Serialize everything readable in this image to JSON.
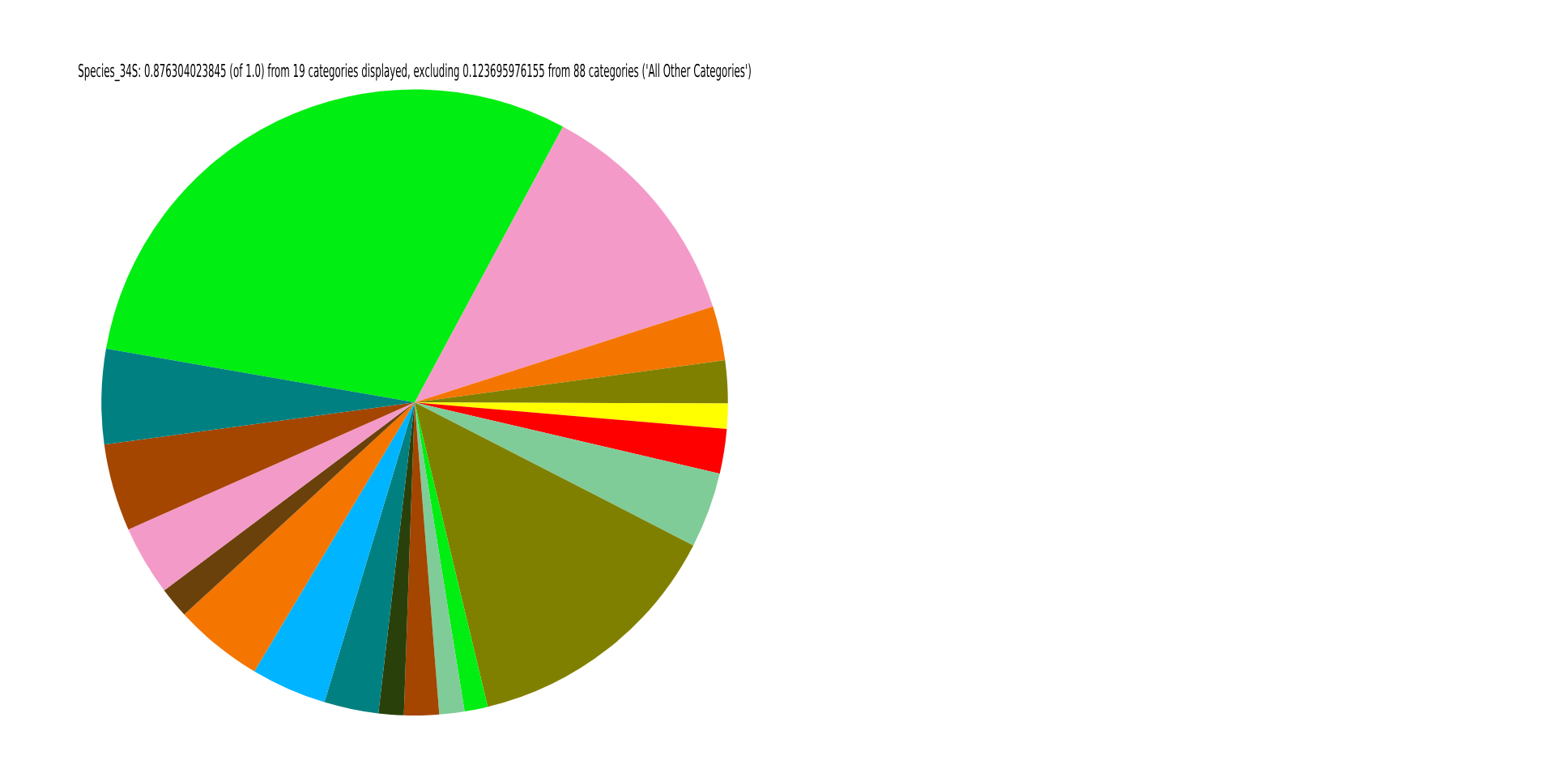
{
  "chart_data": {
    "type": "pie",
    "title": "Species_34S: 0.876304023845 (of 1.0) from 19 categories displayed, excluding 0.123695976155 from 88 categories ('All Other Categories')",
    "categories": [
      null,
      null,
      null,
      null,
      null,
      null,
      null,
      null,
      null,
      null,
      null,
      null,
      null,
      null,
      null,
      null,
      null,
      null,
      null
    ],
    "values": [
      30.1,
      12.2,
      2.8,
      2.2,
      1.3,
      2.3,
      3.9,
      13.7,
      1.2,
      1.3,
      1.8,
      1.3,
      2.8,
      3.9,
      4.6,
      1.6,
      3.6,
      4.5,
      4.9
    ],
    "colors": [
      "#00ee11",
      "#f49ac8",
      "#f47500",
      "#808000",
      "#ffff00",
      "#ff0000",
      "#80cc99",
      "#808000",
      "#00ee11",
      "#80cc99",
      "#a44500",
      "#2a400a",
      "#008080",
      "#00b4ff",
      "#f47500",
      "#6b410b",
      "#f49ac8",
      "#a44500",
      "#008080"
    ],
    "legend": false
  }
}
